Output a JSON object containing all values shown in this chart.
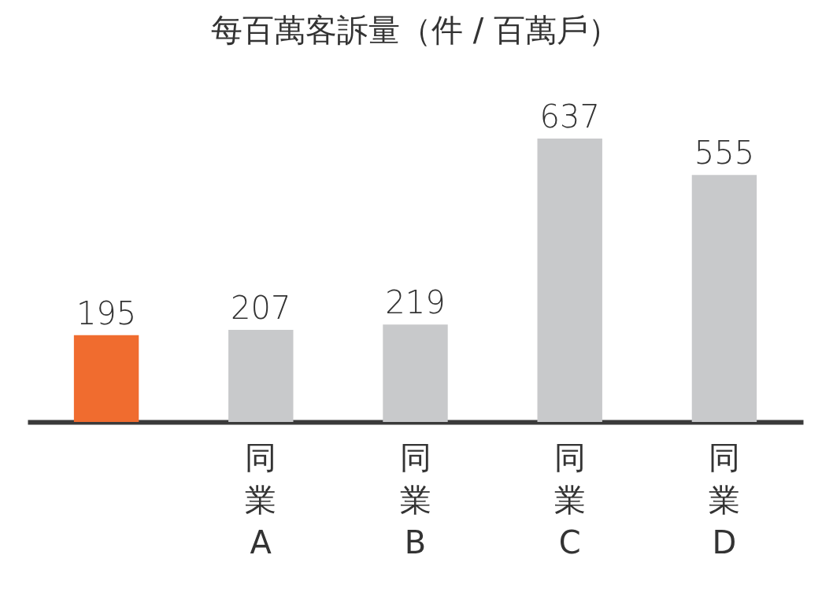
{
  "chart_data": {
    "type": "bar",
    "title": "每百萬客訴量（件 / 百萬戶）",
    "categories": [
      null,
      "同業A",
      "同業B",
      "同業C",
      "同業D"
    ],
    "values": [
      195,
      207,
      219,
      637,
      555
    ],
    "colors": [
      "#f06c2f",
      "#c8c9cb",
      "#c8c9cb",
      "#c8c9cb",
      "#c8c9cb"
    ],
    "data_labels": true
  }
}
